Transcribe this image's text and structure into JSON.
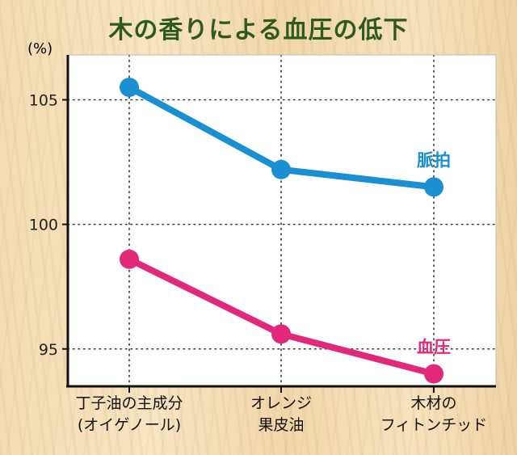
{
  "chart_data": {
    "type": "line",
    "title": "木の香りによる血圧の低下",
    "unit": "(%)",
    "categories": [
      [
        "丁子油の主成分",
        "(オイゲノール)"
      ],
      [
        "オレンジ",
        "果皮油"
      ],
      [
        "木材の",
        "フィトンチッド"
      ]
    ],
    "y_ticks": [
      95,
      100,
      105
    ],
    "ylim": [
      93.5,
      106.8
    ],
    "grid": "dotted",
    "series": [
      {
        "name": "脈拍",
        "values": [
          105.5,
          102.2,
          101.5
        ],
        "color": "#1a8fd1"
      },
      {
        "name": "血圧",
        "values": [
          98.6,
          95.6,
          94.0
        ],
        "color": "#e2287b"
      }
    ]
  },
  "colors": {
    "title": "#2e5a1f",
    "axis": "#111111",
    "plot_bg": "#ffffff"
  }
}
